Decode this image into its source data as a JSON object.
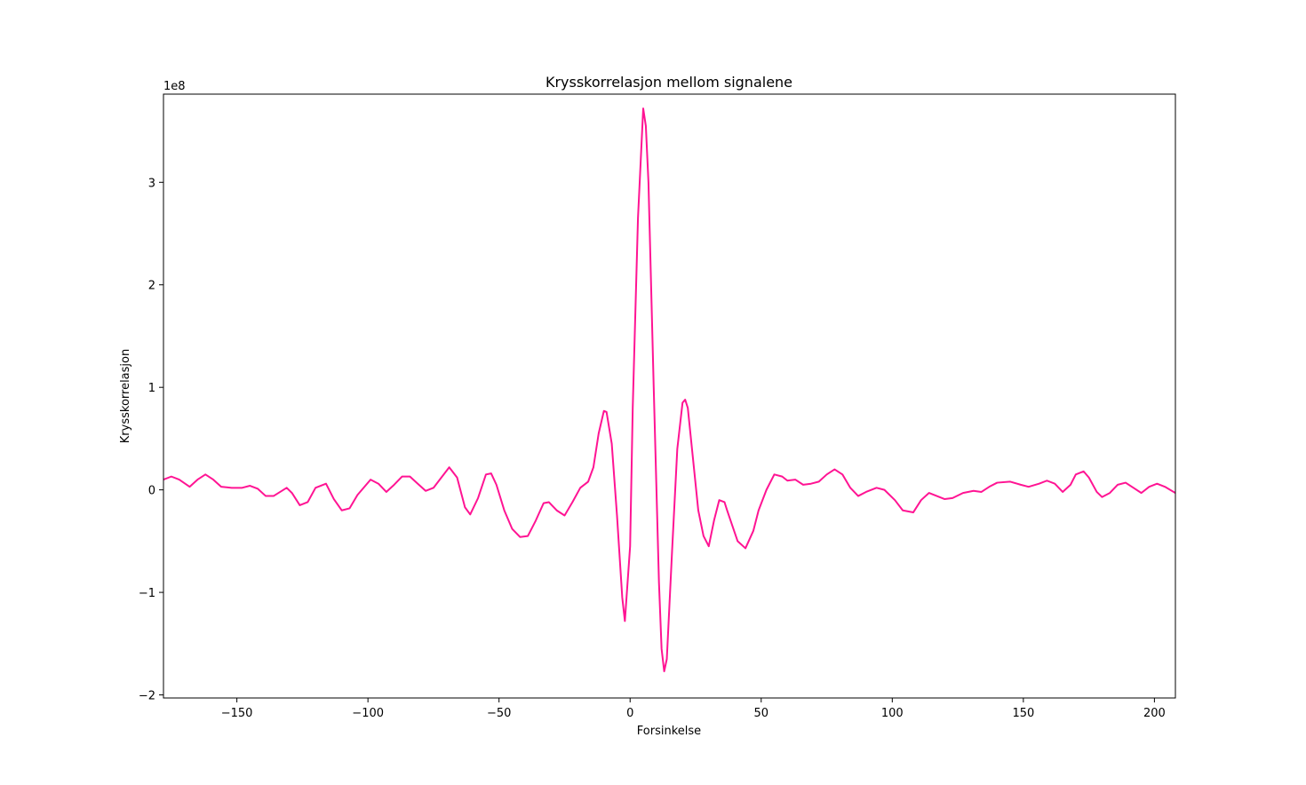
{
  "chart_data": {
    "type": "line",
    "title": "Krysskorrelasjon mellom signalene",
    "xlabel": "Forsinkelse",
    "ylabel": "Krysskorrelasjon",
    "y_offset_label": "1e8",
    "xlim": [
      -178,
      208
    ],
    "ylim": [
      -2.03,
      3.86
    ],
    "x_ticks": [
      -150,
      -100,
      -50,
      0,
      50,
      100,
      150,
      200
    ],
    "x_tick_labels": [
      "−150",
      "−100",
      "−50",
      "0",
      "50",
      "100",
      "150",
      "200"
    ],
    "y_ticks": [
      -2,
      -1,
      0,
      1,
      2,
      3
    ],
    "y_tick_labels": [
      "−2",
      "−1",
      "0",
      "1",
      "2",
      "3"
    ],
    "grid": false,
    "line_color": "#ff1493",
    "series": [
      {
        "x": [
          -178,
          -175,
          -172,
          -168,
          -165,
          -162,
          -159,
          -156,
          -152,
          -148,
          -145,
          -142,
          -139,
          -136,
          -131,
          -129,
          -126,
          -123,
          -120,
          -116,
          -113,
          -110,
          -107,
          -104,
          -99,
          -96,
          -93,
          -90,
          -87,
          -84,
          -81,
          -78,
          -75,
          -72,
          -69,
          -66,
          -63,
          -61,
          -58,
          -55,
          -53,
          -51,
          -48,
          -45,
          -42,
          -39,
          -36,
          -33,
          -31,
          -28,
          -25,
          -22,
          -19,
          -16,
          -14,
          -12,
          -10,
          -9,
          -7,
          -5,
          -3,
          -2,
          0,
          1,
          3,
          5,
          6,
          7,
          9,
          11,
          12,
          13,
          14,
          16,
          18,
          20,
          21,
          22,
          24,
          26,
          28,
          30,
          32,
          34,
          36,
          37,
          39,
          41,
          44,
          47,
          49,
          52,
          55,
          58,
          60,
          63,
          66,
          69,
          72,
          75,
          78,
          81,
          84,
          87,
          90,
          94,
          97,
          101,
          104,
          108,
          111,
          114,
          117,
          120,
          123,
          127,
          131,
          134,
          137,
          140,
          145,
          149,
          152,
          156,
          159,
          162,
          165,
          168,
          170,
          173,
          175,
          178,
          180,
          183,
          186,
          189,
          192,
          195,
          198,
          201,
          204,
          208
        ],
        "values": [
          0.1,
          0.13,
          0.1,
          0.03,
          0.1,
          0.15,
          0.1,
          0.03,
          0.02,
          0.02,
          0.04,
          0.01,
          -0.06,
          -0.06,
          0.02,
          -0.03,
          -0.15,
          -0.12,
          0.02,
          0.06,
          -0.09,
          -0.2,
          -0.18,
          -0.05,
          0.1,
          0.06,
          -0.02,
          0.05,
          0.13,
          0.13,
          0.06,
          -0.01,
          0.02,
          0.12,
          0.22,
          0.12,
          -0.17,
          -0.24,
          -0.08,
          0.15,
          0.16,
          0.05,
          -0.2,
          -0.38,
          -0.46,
          -0.45,
          -0.3,
          -0.13,
          -0.12,
          -0.2,
          -0.25,
          -0.12,
          0.02,
          0.08,
          0.22,
          0.55,
          0.77,
          0.76,
          0.45,
          -0.25,
          -1.05,
          -1.28,
          -0.55,
          0.8,
          2.65,
          3.72,
          3.55,
          3.0,
          1.0,
          -0.9,
          -1.55,
          -1.77,
          -1.65,
          -0.6,
          0.4,
          0.85,
          0.88,
          0.8,
          0.3,
          -0.2,
          -0.45,
          -0.55,
          -0.3,
          -0.1,
          -0.12,
          -0.2,
          -0.35,
          -0.5,
          -0.57,
          -0.4,
          -0.2,
          0.0,
          0.15,
          0.13,
          0.09,
          0.1,
          0.05,
          0.06,
          0.08,
          0.15,
          0.2,
          0.15,
          0.02,
          -0.06,
          -0.02,
          0.02,
          0.0,
          -0.1,
          -0.2,
          -0.22,
          -0.1,
          -0.03,
          -0.06,
          -0.09,
          -0.08,
          -0.03,
          -0.01,
          -0.02,
          0.03,
          0.07,
          0.08,
          0.05,
          0.03,
          0.06,
          0.09,
          0.06,
          -0.02,
          0.05,
          0.15,
          0.18,
          0.12,
          -0.02,
          -0.07,
          -0.03,
          0.05,
          0.07,
          0.02,
          -0.03,
          0.03,
          0.06,
          0.03,
          -0.03
        ]
      }
    ]
  }
}
